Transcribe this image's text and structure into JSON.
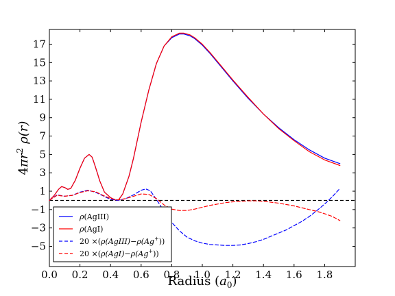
{
  "chart_data": {
    "type": "line",
    "xlabel": "Radius  (a0)",
    "xlabel_parts": {
      "main": "Radius  (",
      "var": "a",
      "sub": "0",
      "close": ")"
    },
    "ylabel": "4πr² ρ(r)",
    "ylabel_parts": {
      "pre": "4",
      "pi": "π",
      "r": "r",
      "sup": "2",
      "rho": "ρ(",
      "arg": "r",
      "close": ")"
    },
    "xlim": [
      0,
      2.0
    ],
    "ylim": [
      -7.2,
      18.6
    ],
    "x_ticks": [
      0.0,
      0.2,
      0.4,
      0.6,
      0.8,
      1.0,
      1.2,
      1.4,
      1.6,
      1.8
    ],
    "x_tick_labels": [
      "0.0",
      "0.2",
      "0.4",
      "0.6",
      "0.8",
      "1.0",
      "1.2",
      "1.4",
      "1.6",
      "1.8"
    ],
    "y_ticks": [
      -5,
      -3,
      -1,
      1,
      3,
      5,
      7,
      9,
      11,
      13,
      15,
      17
    ],
    "y_tick_labels": [
      "−5",
      "−3",
      "−1",
      "1",
      "3",
      "5",
      "7",
      "9",
      "11",
      "13",
      "15",
      "17"
    ],
    "grid": false,
    "reference_line": {
      "y": 0,
      "color": "#000000",
      "style": "dashed"
    },
    "legend_position": "lower-left",
    "series": [
      {
        "name": "ρ(AgIII)",
        "color": "#0000ff",
        "style": "solid",
        "x": [
          0.0,
          0.03,
          0.06,
          0.08,
          0.1,
          0.12,
          0.14,
          0.17,
          0.2,
          0.23,
          0.26,
          0.28,
          0.3,
          0.33,
          0.36,
          0.4,
          0.43,
          0.45,
          0.48,
          0.52,
          0.55,
          0.6,
          0.65,
          0.7,
          0.75,
          0.8,
          0.85,
          0.88,
          0.9,
          0.92,
          0.95,
          1.0,
          1.05,
          1.1,
          1.2,
          1.3,
          1.4,
          1.5,
          1.6,
          1.7,
          1.8,
          1.9
        ],
        "y": [
          0.0,
          0.5,
          1.2,
          1.5,
          1.4,
          1.2,
          1.3,
          2.2,
          3.5,
          4.6,
          5.0,
          4.7,
          3.7,
          2.1,
          0.9,
          0.3,
          0.05,
          0.0,
          0.7,
          2.6,
          4.6,
          8.5,
          12.0,
          14.9,
          16.8,
          17.7,
          18.1,
          18.1,
          18.0,
          17.9,
          17.6,
          16.9,
          16.0,
          15.0,
          13.0,
          11.1,
          9.4,
          7.9,
          6.6,
          5.5,
          4.6,
          4.0
        ]
      },
      {
        "name": "ρ(AgI)",
        "color": "#ff0000",
        "style": "solid",
        "x": [
          0.0,
          0.03,
          0.06,
          0.08,
          0.1,
          0.12,
          0.14,
          0.17,
          0.2,
          0.23,
          0.26,
          0.28,
          0.3,
          0.33,
          0.36,
          0.4,
          0.43,
          0.45,
          0.48,
          0.52,
          0.55,
          0.6,
          0.65,
          0.7,
          0.75,
          0.8,
          0.85,
          0.88,
          0.9,
          0.92,
          0.95,
          1.0,
          1.05,
          1.1,
          1.2,
          1.3,
          1.4,
          1.5,
          1.6,
          1.7,
          1.8,
          1.9
        ],
        "y": [
          0.0,
          0.5,
          1.2,
          1.5,
          1.4,
          1.2,
          1.3,
          2.2,
          3.5,
          4.6,
          5.0,
          4.7,
          3.7,
          2.1,
          0.9,
          0.3,
          0.05,
          0.0,
          0.7,
          2.6,
          4.6,
          8.5,
          12.0,
          14.9,
          16.8,
          17.8,
          18.2,
          18.2,
          18.1,
          18.0,
          17.7,
          17.0,
          16.1,
          15.1,
          13.1,
          11.2,
          9.4,
          7.8,
          6.5,
          5.3,
          4.4,
          3.8
        ]
      },
      {
        "name": "20 ×(ρ(AgIII)−ρ(Ag⁺))",
        "color": "#0000ff",
        "style": "dashed",
        "x": [
          0.0,
          0.05,
          0.1,
          0.15,
          0.2,
          0.25,
          0.3,
          0.35,
          0.4,
          0.45,
          0.5,
          0.55,
          0.6,
          0.63,
          0.66,
          0.7,
          0.75,
          0.8,
          0.85,
          0.9,
          0.95,
          1.0,
          1.05,
          1.1,
          1.15,
          1.2,
          1.25,
          1.3,
          1.35,
          1.4,
          1.45,
          1.5,
          1.55,
          1.6,
          1.65,
          1.7,
          1.75,
          1.8,
          1.85,
          1.9
        ],
        "y": [
          0.0,
          0.6,
          0.45,
          0.55,
          0.9,
          1.1,
          0.9,
          0.5,
          0.1,
          0.0,
          0.2,
          0.6,
          1.1,
          1.25,
          1.05,
          0.1,
          -1.2,
          -2.4,
          -3.3,
          -4.0,
          -4.4,
          -4.65,
          -4.8,
          -4.85,
          -4.9,
          -4.9,
          -4.85,
          -4.7,
          -4.5,
          -4.25,
          -3.9,
          -3.55,
          -3.2,
          -2.75,
          -2.3,
          -1.75,
          -1.1,
          -0.4,
          0.4,
          1.3
        ]
      },
      {
        "name": "20 ×(ρ(AgI)−ρ(Ag⁺))",
        "color": "#ff0000",
        "style": "dashed",
        "x": [
          0.0,
          0.05,
          0.1,
          0.15,
          0.2,
          0.25,
          0.3,
          0.35,
          0.4,
          0.45,
          0.5,
          0.55,
          0.6,
          0.65,
          0.7,
          0.75,
          0.8,
          0.85,
          0.9,
          0.95,
          1.0,
          1.05,
          1.1,
          1.15,
          1.2,
          1.25,
          1.3,
          1.35,
          1.4,
          1.45,
          1.5,
          1.55,
          1.6,
          1.65,
          1.7,
          1.75,
          1.8,
          1.85,
          1.9
        ],
        "y": [
          0.0,
          0.55,
          0.45,
          0.55,
          0.85,
          1.05,
          0.95,
          0.55,
          0.2,
          0.05,
          0.2,
          0.45,
          0.7,
          0.65,
          0.2,
          -0.5,
          -0.95,
          -1.1,
          -1.1,
          -0.95,
          -0.75,
          -0.55,
          -0.4,
          -0.25,
          -0.15,
          -0.1,
          -0.05,
          -0.05,
          -0.1,
          -0.2,
          -0.3,
          -0.45,
          -0.6,
          -0.8,
          -1.0,
          -1.2,
          -1.45,
          -1.75,
          -2.2
        ]
      }
    ],
    "legend_entries": [
      {
        "label_parts": [
          "ρ(AgIII)"
        ],
        "color": "#0000ff",
        "style": "solid"
      },
      {
        "label_parts": [
          "ρ(AgI)"
        ],
        "color": "#ff0000",
        "style": "solid"
      },
      {
        "label_parts": [
          "20 ×(",
          "ρ(AgIII)",
          "−",
          "ρ(Ag",
          "+",
          "))"
        ],
        "color": "#0000ff",
        "style": "dashed"
      },
      {
        "label_parts": [
          "20 ×(",
          "ρ(AgI)",
          "−",
          "ρ(Ag",
          "+",
          "))"
        ],
        "color": "#ff0000",
        "style": "dashed"
      }
    ]
  }
}
